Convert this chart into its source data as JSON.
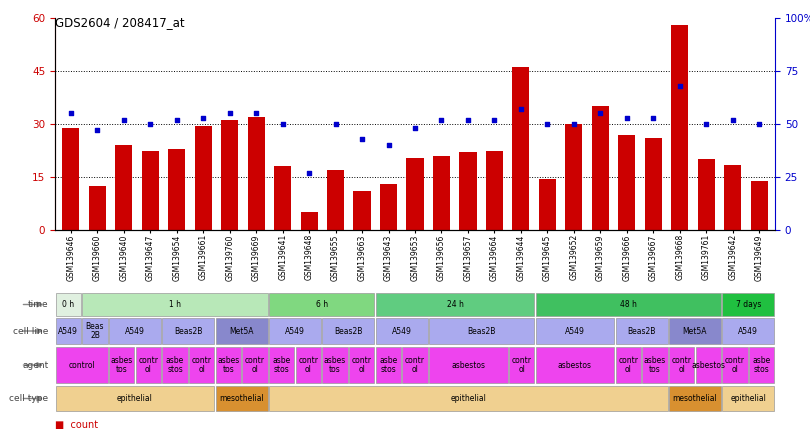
{
  "title": "GDS2604 / 208417_at",
  "samples": [
    "GSM139646",
    "GSM139660",
    "GSM139640",
    "GSM139647",
    "GSM139654",
    "GSM139661",
    "GSM139760",
    "GSM139669",
    "GSM139641",
    "GSM139648",
    "GSM139655",
    "GSM139663",
    "GSM139643",
    "GSM139653",
    "GSM139656",
    "GSM139657",
    "GSM139664",
    "GSM139644",
    "GSM139645",
    "GSM139652",
    "GSM139659",
    "GSM139666",
    "GSM139667",
    "GSM139668",
    "GSM139761",
    "GSM139642",
    "GSM139649"
  ],
  "counts": [
    29.0,
    12.5,
    24.0,
    22.5,
    23.0,
    29.5,
    31.0,
    32.0,
    18.0,
    5.0,
    17.0,
    11.0,
    13.0,
    20.5,
    21.0,
    22.0,
    22.5,
    46.0,
    14.5,
    30.0,
    35.0,
    27.0,
    26.0,
    58.0,
    20.0,
    18.5,
    14.0
  ],
  "percentiles": [
    55,
    47,
    52,
    50,
    52,
    53,
    55,
    55,
    50,
    27,
    50,
    43,
    40,
    48,
    52,
    52,
    52,
    57,
    50,
    50,
    55,
    53,
    53,
    68,
    50,
    52,
    50
  ],
  "bar_color": "#cc0000",
  "dot_color": "#0000cc",
  "left_axis_color": "#cc0000",
  "right_axis_color": "#0000cc",
  "ylim_left": [
    0,
    60
  ],
  "ylim_right": [
    0,
    100
  ],
  "yticks_left": [
    0,
    15,
    30,
    45,
    60
  ],
  "yticks_right": [
    0,
    25,
    50,
    75,
    100
  ],
  "ytick_labels_right": [
    "0",
    "25",
    "50",
    "75",
    "100%"
  ],
  "hline_values": [
    15,
    30,
    45
  ],
  "time_groups": [
    {
      "label": "0 h",
      "start": 0,
      "end": 1,
      "color": "#e0f0e0"
    },
    {
      "label": "1 h",
      "start": 1,
      "end": 8,
      "color": "#b8e8b8"
    },
    {
      "label": "6 h",
      "start": 8,
      "end": 12,
      "color": "#80d880"
    },
    {
      "label": "24 h",
      "start": 12,
      "end": 18,
      "color": "#60cc80"
    },
    {
      "label": "48 h",
      "start": 18,
      "end": 25,
      "color": "#40c060"
    },
    {
      "label": "7 days",
      "start": 25,
      "end": 27,
      "color": "#20c040"
    }
  ],
  "cell_line_groups": [
    {
      "label": "A549",
      "start": 0,
      "end": 1,
      "color": "#aaaaee"
    },
    {
      "label": "Beas\n2B",
      "start": 1,
      "end": 2,
      "color": "#aaaaee"
    },
    {
      "label": "A549",
      "start": 2,
      "end": 4,
      "color": "#aaaaee"
    },
    {
      "label": "Beas2B",
      "start": 4,
      "end": 6,
      "color": "#aaaaee"
    },
    {
      "label": "Met5A",
      "start": 6,
      "end": 8,
      "color": "#8888cc"
    },
    {
      "label": "A549",
      "start": 8,
      "end": 10,
      "color": "#aaaaee"
    },
    {
      "label": "Beas2B",
      "start": 10,
      "end": 12,
      "color": "#aaaaee"
    },
    {
      "label": "A549",
      "start": 12,
      "end": 14,
      "color": "#aaaaee"
    },
    {
      "label": "Beas2B",
      "start": 14,
      "end": 18,
      "color": "#aaaaee"
    },
    {
      "label": "A549",
      "start": 18,
      "end": 21,
      "color": "#aaaaee"
    },
    {
      "label": "Beas2B",
      "start": 21,
      "end": 23,
      "color": "#aaaaee"
    },
    {
      "label": "Met5A",
      "start": 23,
      "end": 25,
      "color": "#8888cc"
    },
    {
      "label": "A549",
      "start": 25,
      "end": 27,
      "color": "#aaaaee"
    }
  ],
  "agent_groups": [
    {
      "label": "control",
      "start": 0,
      "end": 2,
      "color": "#ee44ee"
    },
    {
      "label": "asbes\ntos",
      "start": 2,
      "end": 3,
      "color": "#ee44ee"
    },
    {
      "label": "contr\nol",
      "start": 3,
      "end": 4,
      "color": "#ee44ee"
    },
    {
      "label": "asbe\nstos",
      "start": 4,
      "end": 5,
      "color": "#ee44ee"
    },
    {
      "label": "contr\nol",
      "start": 5,
      "end": 6,
      "color": "#ee44ee"
    },
    {
      "label": "asbes\ntos",
      "start": 6,
      "end": 7,
      "color": "#ee44ee"
    },
    {
      "label": "contr\nol",
      "start": 7,
      "end": 8,
      "color": "#ee44ee"
    },
    {
      "label": "asbe\nstos",
      "start": 8,
      "end": 9,
      "color": "#ee44ee"
    },
    {
      "label": "contr\nol",
      "start": 9,
      "end": 10,
      "color": "#ee44ee"
    },
    {
      "label": "asbes\ntos",
      "start": 10,
      "end": 11,
      "color": "#ee44ee"
    },
    {
      "label": "contr\nol",
      "start": 11,
      "end": 12,
      "color": "#ee44ee"
    },
    {
      "label": "asbe\nstos",
      "start": 12,
      "end": 13,
      "color": "#ee44ee"
    },
    {
      "label": "contr\nol",
      "start": 13,
      "end": 14,
      "color": "#ee44ee"
    },
    {
      "label": "asbestos",
      "start": 14,
      "end": 17,
      "color": "#ee44ee"
    },
    {
      "label": "contr\nol",
      "start": 17,
      "end": 18,
      "color": "#ee44ee"
    },
    {
      "label": "asbestos",
      "start": 18,
      "end": 21,
      "color": "#ee44ee"
    },
    {
      "label": "contr\nol",
      "start": 21,
      "end": 22,
      "color": "#ee44ee"
    },
    {
      "label": "asbes\ntos",
      "start": 22,
      "end": 23,
      "color": "#ee44ee"
    },
    {
      "label": "contr\nol",
      "start": 23,
      "end": 24,
      "color": "#ee44ee"
    },
    {
      "label": "asbestos",
      "start": 24,
      "end": 25,
      "color": "#ee44ee"
    },
    {
      "label": "contr\nol",
      "start": 25,
      "end": 26,
      "color": "#ee44ee"
    },
    {
      "label": "asbe\nstos",
      "start": 26,
      "end": 27,
      "color": "#ee44ee"
    }
  ],
  "cell_type_groups": [
    {
      "label": "epithelial",
      "start": 0,
      "end": 6,
      "color": "#f0d090"
    },
    {
      "label": "mesothelial",
      "start": 6,
      "end": 8,
      "color": "#d89030"
    },
    {
      "label": "epithelial",
      "start": 8,
      "end": 23,
      "color": "#f0d090"
    },
    {
      "label": "mesothelial",
      "start": 23,
      "end": 25,
      "color": "#d89030"
    },
    {
      "label": "epithelial",
      "start": 25,
      "end": 27,
      "color": "#f0d090"
    }
  ]
}
